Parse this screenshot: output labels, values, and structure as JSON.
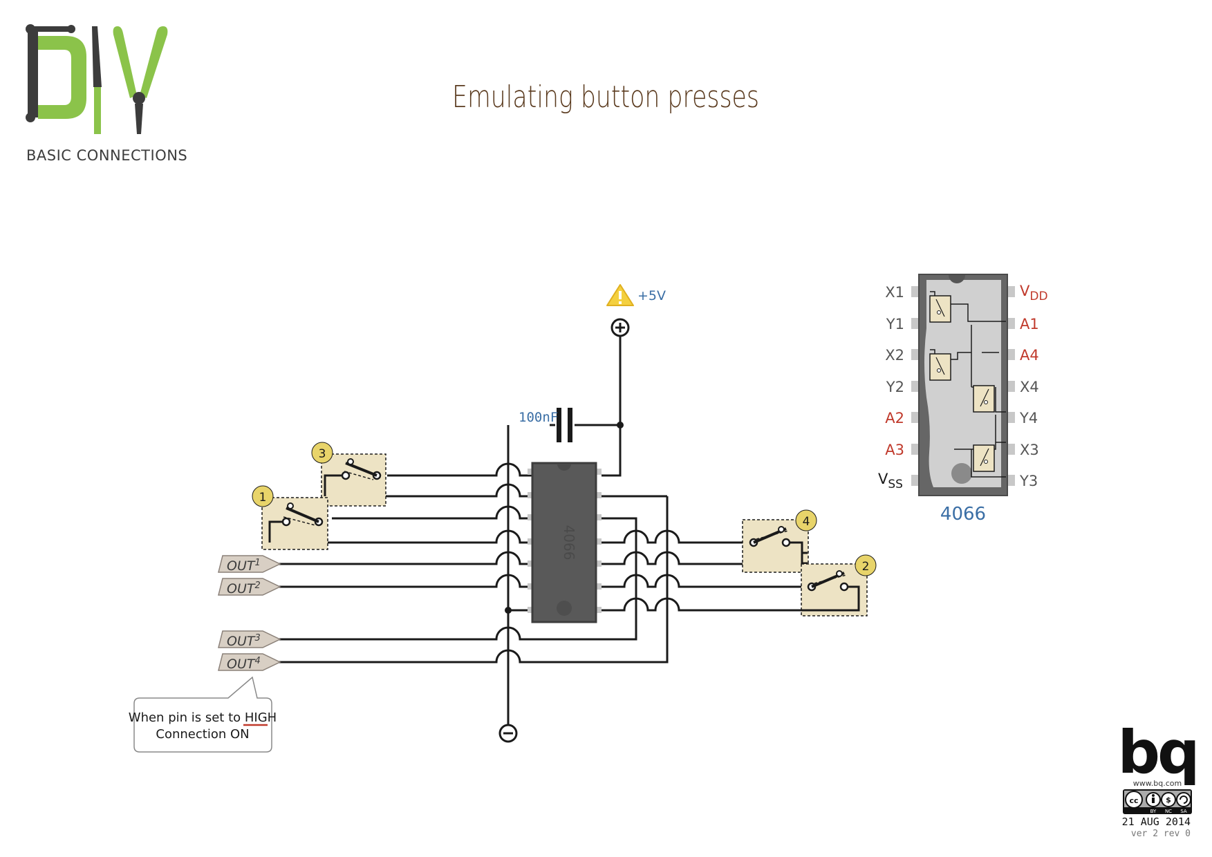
{
  "header": {
    "title": "Emulating button presses",
    "logo_text": "DIY",
    "logo_subtitle": "BASIC CONNECTIONS"
  },
  "power": {
    "supply_label": "+5V",
    "warning_icon": "warning-triangle-icon",
    "positive_terminal_icon": "plus-circle-icon",
    "negative_terminal_icon": "minus-circle-icon"
  },
  "capacitor": {
    "label": "100nF"
  },
  "ic": {
    "chip_marking": "4066",
    "name_label": "4066"
  },
  "switches": [
    {
      "number": "1"
    },
    {
      "number": "3"
    },
    {
      "number": "4"
    },
    {
      "number": "2"
    }
  ],
  "outputs": [
    {
      "label": "OUT",
      "sup": "1"
    },
    {
      "label": "OUT",
      "sup": "2"
    },
    {
      "label": "OUT",
      "sup": "3"
    },
    {
      "label": "OUT",
      "sup": "4"
    }
  ],
  "note": {
    "line1_prefix": "When pin is set to ",
    "line1_emph": "HIGH",
    "line2": "Connection ON"
  },
  "pinout": {
    "left": [
      {
        "main": "X1",
        "sub": ""
      },
      {
        "main": "Y1",
        "sub": ""
      },
      {
        "main": "X2",
        "sub": ""
      },
      {
        "main": "Y2",
        "sub": ""
      },
      {
        "main": "A2",
        "sub": ""
      },
      {
        "main": "A3",
        "sub": ""
      },
      {
        "main": "V",
        "sub": "SS"
      }
    ],
    "right": [
      {
        "main": "V",
        "sub": "DD"
      },
      {
        "main": "A1",
        "sub": ""
      },
      {
        "main": "A4",
        "sub": ""
      },
      {
        "main": "X4",
        "sub": ""
      },
      {
        "main": "Y4",
        "sub": ""
      },
      {
        "main": "X3",
        "sub": ""
      },
      {
        "main": "Y3",
        "sub": ""
      }
    ]
  },
  "footer": {
    "brand": "bq",
    "url": "www.bq.com",
    "license_icon": "creative-commons-by-nc-sa-icon",
    "license_labels": [
      "BY",
      "NC",
      "SA"
    ],
    "date": "21 AUG 2014",
    "version": "ver 2 rev 0"
  },
  "colors": {
    "title": "#5a3a1e",
    "logo_green": "#8bc34a",
    "logo_dark": "#3c3c3c",
    "wire": "#1a1a1a",
    "switch_fill": "#ede3c4",
    "badge_fill": "#e8d46a",
    "blue_label": "#3a6ea5",
    "red_label": "#c0392b",
    "ic_body": "#595959",
    "out_tag": "#d8cfc4"
  }
}
